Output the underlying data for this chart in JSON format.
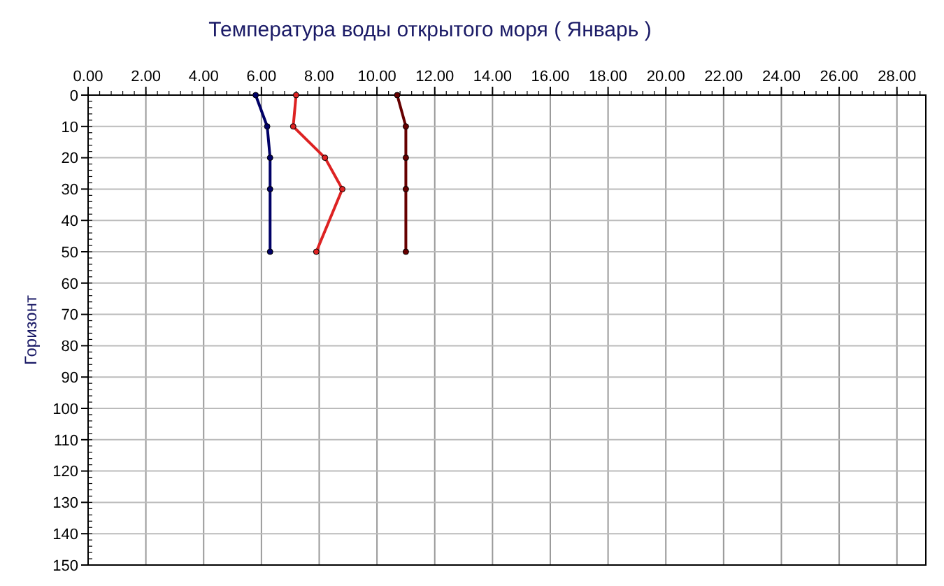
{
  "chart_data": {
    "type": "line",
    "title": "Температура воды открытого моря     ( Январь )",
    "ylabel": "Горизонт",
    "xlim": [
      0,
      29
    ],
    "xticks": [
      {
        "value": 0,
        "label": "0.00"
      },
      {
        "value": 2,
        "label": "2.00"
      },
      {
        "value": 4,
        "label": "4.00"
      },
      {
        "value": 6,
        "label": "6.00"
      },
      {
        "value": 8,
        "label": "8.00"
      },
      {
        "value": 10,
        "label": "10.00"
      },
      {
        "value": 12,
        "label": "12.00"
      },
      {
        "value": 14,
        "label": "14.00"
      },
      {
        "value": 16,
        "label": "16.00"
      },
      {
        "value": 18,
        "label": "18.00"
      },
      {
        "value": 20,
        "label": "20.00"
      },
      {
        "value": 22,
        "label": "22.00"
      },
      {
        "value": 24,
        "label": "24.00"
      },
      {
        "value": 26,
        "label": "26.00"
      },
      {
        "value": 28,
        "label": "28.00"
      }
    ],
    "ylim": [
      150,
      0
    ],
    "yticks": [
      0,
      10,
      20,
      30,
      40,
      50,
      60,
      70,
      80,
      90,
      100,
      110,
      120,
      130,
      140,
      150
    ],
    "grid": true,
    "marker": "circle",
    "series": [
      {
        "color": "#000066",
        "x": [
          5.8,
          6.2,
          6.3,
          6.3,
          6.3
        ],
        "values": [
          0,
          10,
          20,
          30,
          50
        ]
      },
      {
        "color": "#dd2222",
        "x": [
          7.2,
          7.1,
          8.2,
          8.8,
          7.9
        ],
        "values": [
          0,
          10,
          20,
          30,
          50
        ]
      },
      {
        "color": "#660000",
        "x": [
          10.7,
          11.0,
          11.0,
          11.0,
          11.0
        ],
        "values": [
          0,
          10,
          20,
          30,
          50
        ]
      }
    ]
  }
}
